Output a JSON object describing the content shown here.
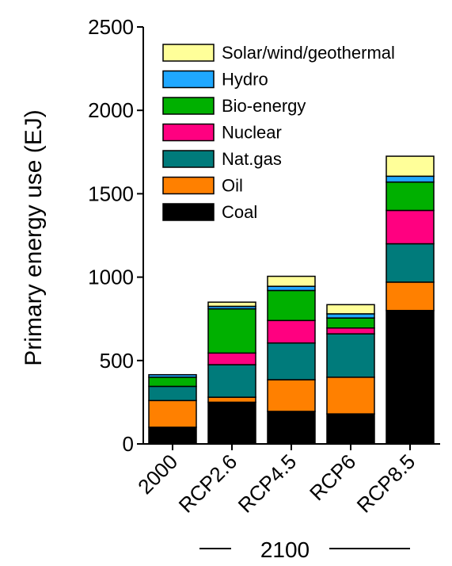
{
  "chart_data": {
    "type": "bar",
    "stacked": true,
    "ylabel": "Primary energy use (EJ)",
    "ylim": [
      0,
      2500
    ],
    "yticks": [
      0,
      500,
      1000,
      1500,
      2000,
      2500
    ],
    "categories": [
      "2000",
      "RCP2.6",
      "RCP4.5",
      "RCP6",
      "RCP8.5"
    ],
    "group_label": "2100",
    "legend_position": "top-left",
    "series": [
      {
        "name": "Coal",
        "color": "#000000",
        "values": [
          100,
          250,
          195,
          180,
          800
        ]
      },
      {
        "name": "Oil",
        "color": "#ff8000",
        "values": [
          160,
          30,
          190,
          220,
          170
        ]
      },
      {
        "name": "Nat.gas",
        "color": "#007b7b",
        "values": [
          85,
          195,
          220,
          260,
          230
        ]
      },
      {
        "name": "Nuclear",
        "color": "#ff0080",
        "values": [
          0,
          70,
          135,
          35,
          200
        ]
      },
      {
        "name": "Bio-energy",
        "color": "#00b000",
        "values": [
          55,
          265,
          180,
          60,
          170
        ]
      },
      {
        "name": "Hydro",
        "color": "#1fa8ff",
        "values": [
          15,
          15,
          25,
          25,
          35
        ]
      },
      {
        "name": "Solar/wind/geothermal",
        "color": "#ffff99",
        "values": [
          0,
          25,
          60,
          55,
          120
        ]
      }
    ]
  }
}
